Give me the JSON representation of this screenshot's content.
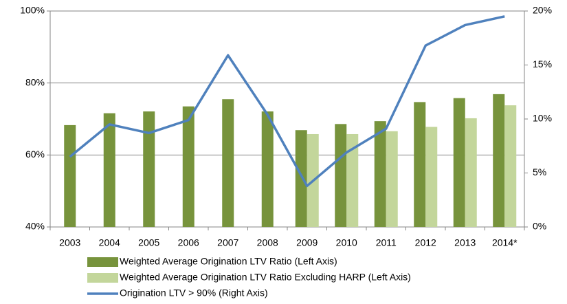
{
  "chart_data": {
    "type": "bar",
    "categories": [
      "2003",
      "2004",
      "2005",
      "2006",
      "2007",
      "2008",
      "2009",
      "2010",
      "2011",
      "2012",
      "2013",
      "2014*"
    ],
    "series": [
      {
        "name": "Weighted Average Origination LTV Ratio (Left Axis)",
        "color": "#77933c",
        "type": "bar",
        "values": [
          68.3,
          71.6,
          72.1,
          73.5,
          75.5,
          72.1,
          66.9,
          68.6,
          69.4,
          74.7,
          75.8,
          76.9
        ]
      },
      {
        "name": "Weighted Average Origination LTV Ratio Excluding HARP (Left Axis)",
        "color": "#c3d69b",
        "type": "bar",
        "values": [
          null,
          null,
          null,
          null,
          null,
          null,
          65.8,
          65.8,
          66.6,
          67.8,
          70.2,
          73.8
        ]
      },
      {
        "name": "Origination LTV > 90% (Right Axis)",
        "color": "#4f81bd",
        "type": "line",
        "axis": "y2",
        "values": [
          6.5,
          9.5,
          8.7,
          9.9,
          15.9,
          10.4,
          3.8,
          6.9,
          9.1,
          16.8,
          18.7,
          19.5
        ]
      }
    ],
    "ylim": [
      40,
      100
    ],
    "yticks": [
      {
        "value": 40,
        "label": "40%"
      },
      {
        "value": 60,
        "label": "60%"
      },
      {
        "value": 80,
        "label": "80%"
      },
      {
        "value": 100,
        "label": "100%"
      }
    ],
    "y2lim": [
      0,
      20
    ],
    "y2ticks": [
      {
        "value": 0,
        "label": "0%"
      },
      {
        "value": 5,
        "label": "5%"
      },
      {
        "value": 10,
        "label": "10%"
      },
      {
        "value": 15,
        "label": "15%"
      },
      {
        "value": 20,
        "label": "20%"
      }
    ],
    "grid": true,
    "legend": "bottom"
  }
}
